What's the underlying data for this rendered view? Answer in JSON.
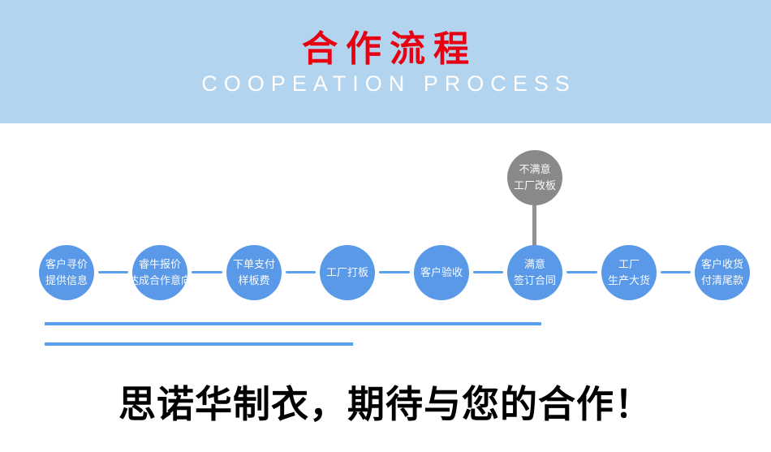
{
  "header": {
    "title": "合作流程",
    "subtitle": "COOPEATION PROCESS"
  },
  "flow": {
    "steps": [
      {
        "lines": [
          "客户寻价",
          "提供信息"
        ]
      },
      {
        "lines": [
          "睿牛报价",
          "达成合作意向"
        ]
      },
      {
        "lines": [
          "下单支付",
          "样板费"
        ]
      },
      {
        "lines": [
          "工厂打板"
        ]
      },
      {
        "lines": [
          "客户验收"
        ]
      },
      {
        "lines": [
          "满意",
          "签订合同"
        ]
      },
      {
        "lines": [
          "工厂",
          "生产大货"
        ]
      },
      {
        "lines": [
          "客户收货",
          "付清尾款"
        ]
      }
    ],
    "alt_step": {
      "lines": [
        "不满意",
        "工厂改板"
      ]
    }
  },
  "footer": {
    "slogan": "思诺华制衣，期待与您的合作！"
  },
  "colors": {
    "header_bg": "#b3d4ef",
    "title_color": "#e60012",
    "subtitle_color": "#ffffff",
    "node_blue": "#5a99e8",
    "node_gray": "#898989",
    "line_blue": "#57a1ee",
    "slogan_color": "#000000"
  }
}
